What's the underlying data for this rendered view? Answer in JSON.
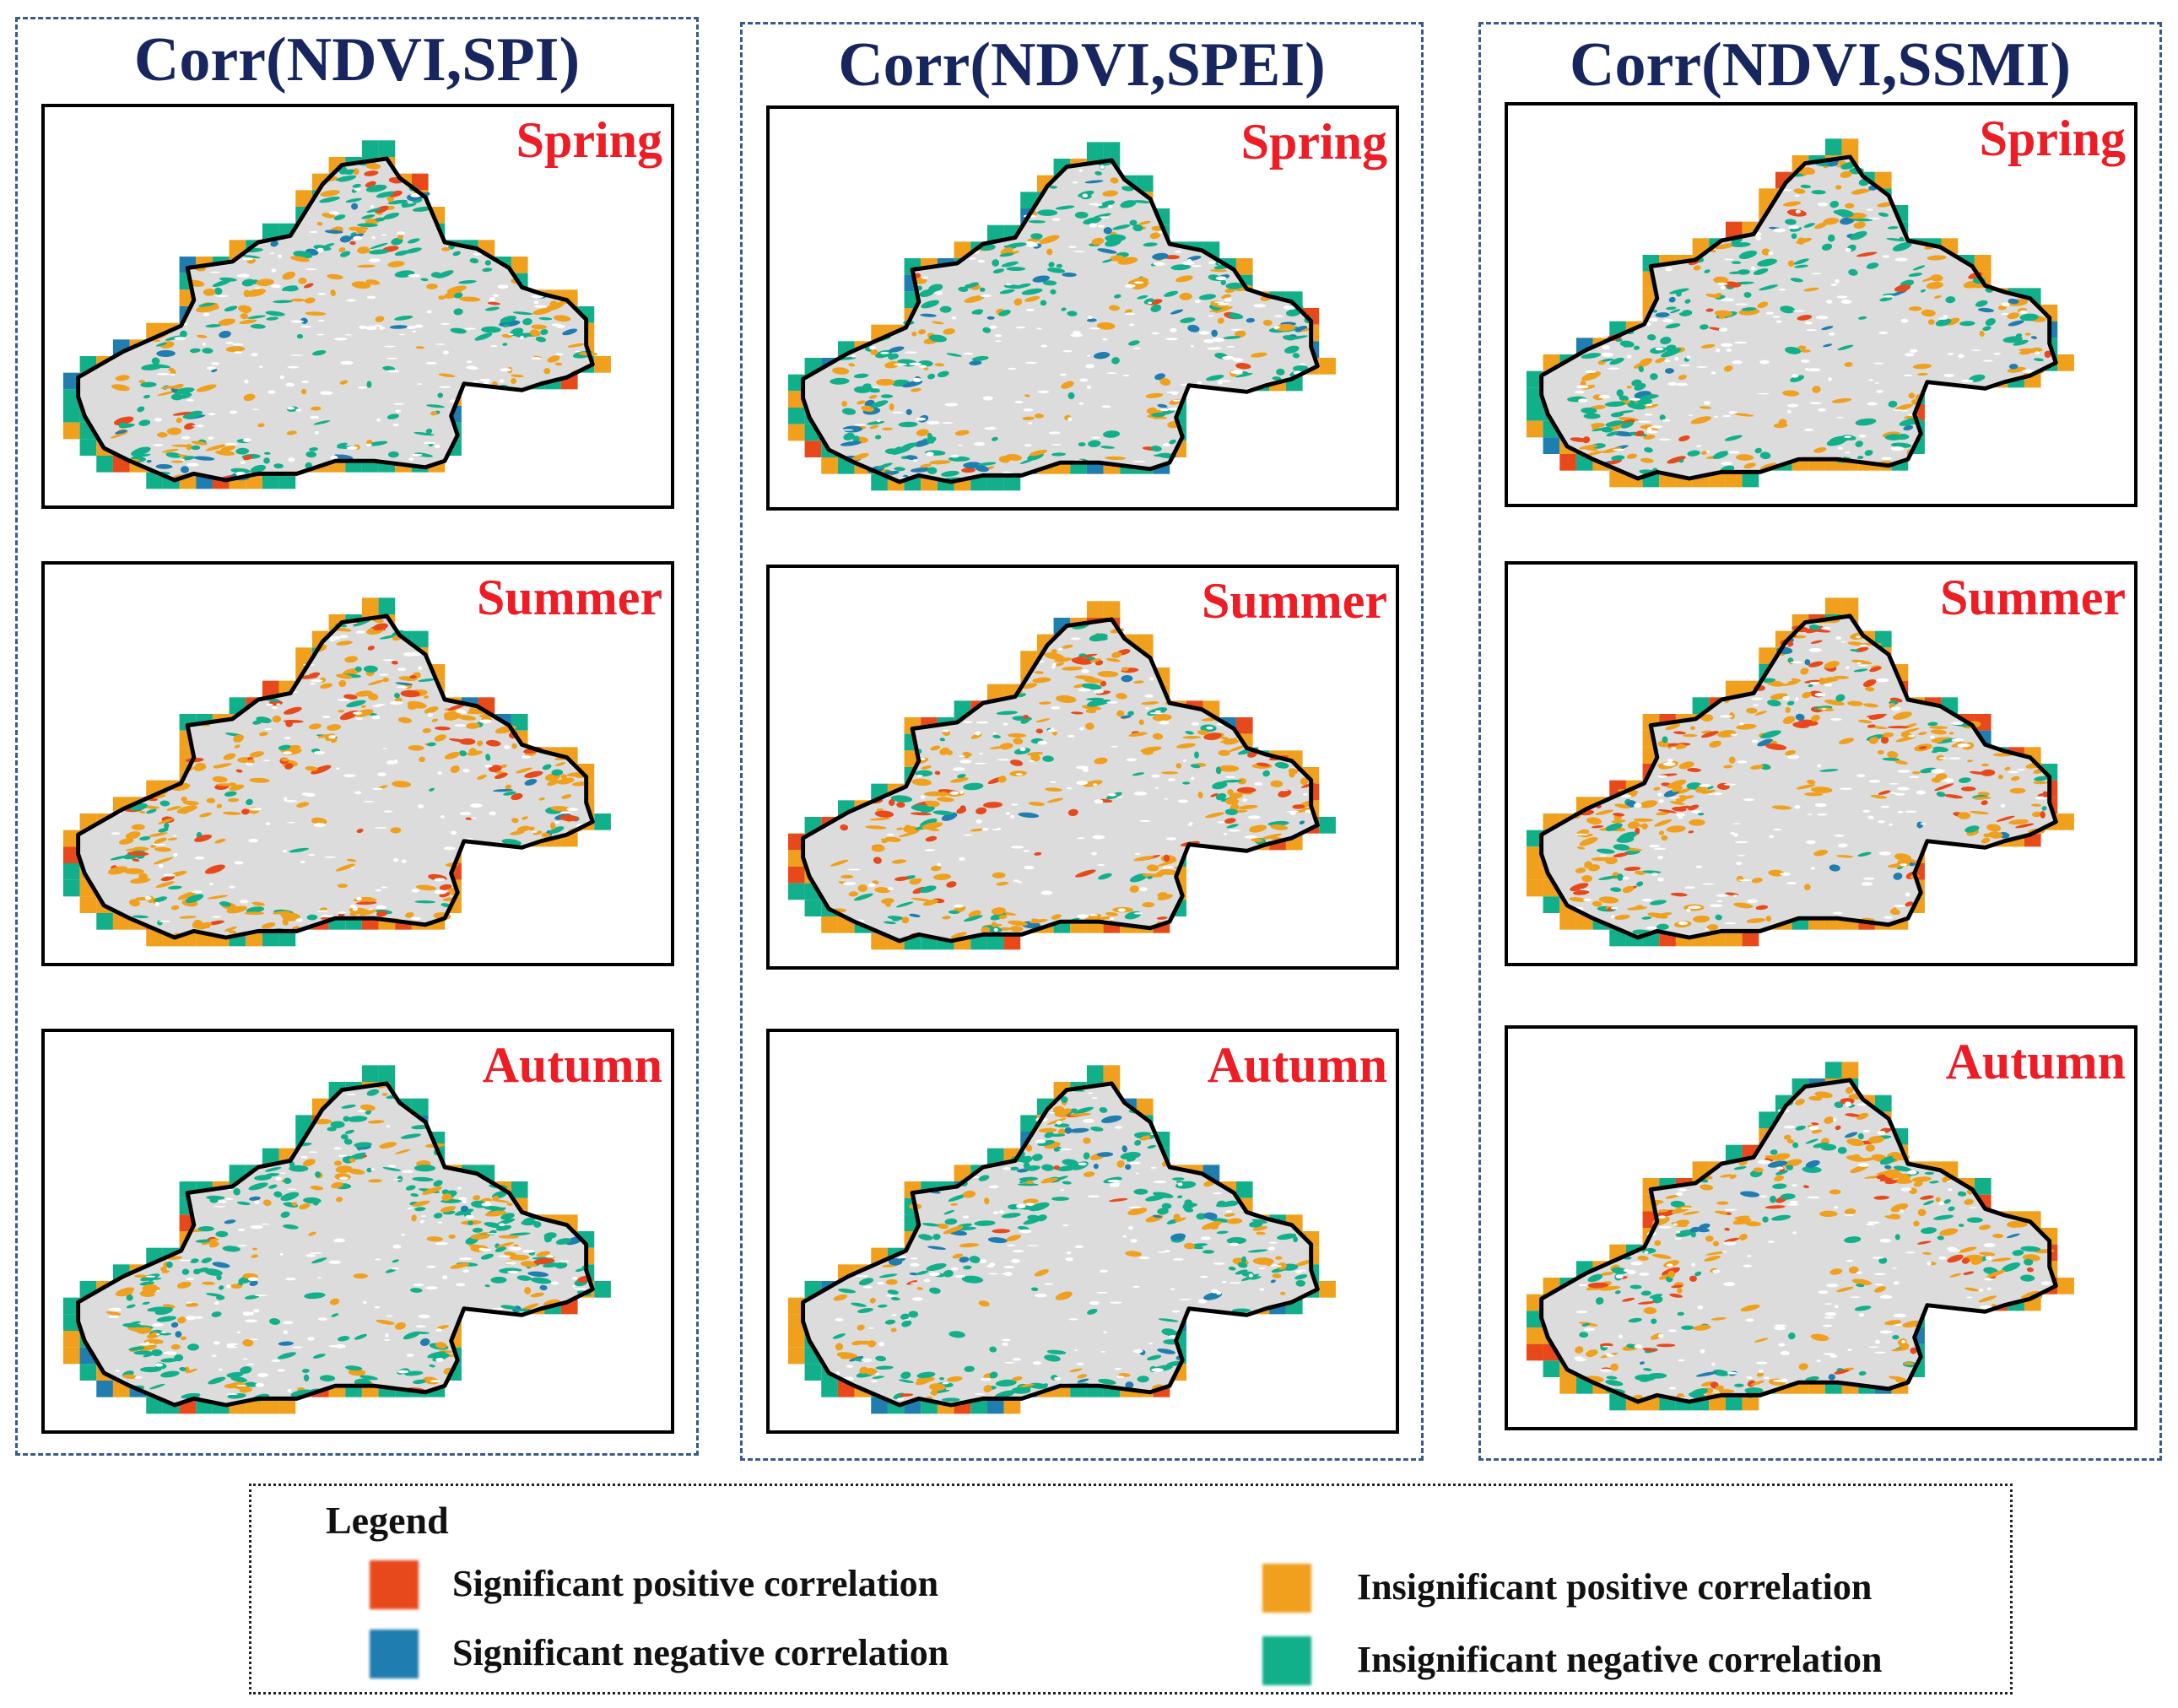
{
  "columns": [
    {
      "title": "Corr(NDVI,SPI)",
      "panels": [
        {
          "season": "Spring",
          "mix": [
            0.04,
            0.1,
            0.4,
            0.46
          ]
        },
        {
          "season": "Summer",
          "mix": [
            0.16,
            0.02,
            0.58,
            0.24
          ]
        },
        {
          "season": "Autumn",
          "mix": [
            0.03,
            0.03,
            0.34,
            0.6
          ]
        }
      ]
    },
    {
      "title": "Corr(NDVI,SPEI)",
      "panels": [
        {
          "season": "Spring",
          "mix": [
            0.02,
            0.14,
            0.3,
            0.54
          ]
        },
        {
          "season": "Summer",
          "mix": [
            0.16,
            0.02,
            0.56,
            0.26
          ]
        },
        {
          "season": "Autumn",
          "mix": [
            0.02,
            0.1,
            0.32,
            0.56
          ]
        }
      ]
    },
    {
      "title": "Corr(NDVI,SSMI)",
      "panels": [
        {
          "season": "Spring",
          "mix": [
            0.06,
            0.06,
            0.46,
            0.42
          ]
        },
        {
          "season": "Summer",
          "mix": [
            0.2,
            0.02,
            0.58,
            0.2
          ]
        },
        {
          "season": "Autumn",
          "mix": [
            0.14,
            0.04,
            0.46,
            0.36
          ]
        }
      ]
    }
  ],
  "legend": {
    "title": "Legend",
    "items": [
      {
        "label": "Significant positive correlation",
        "color": "#e8491b"
      },
      {
        "label": "Insignificant positive correlation",
        "color": "#f0a01c"
      },
      {
        "label": "Significant negative correlation",
        "color": "#1f7db0"
      },
      {
        "label": "Insignificant negative correlation",
        "color": "#12b08a"
      }
    ]
  },
  "colors": {
    "background_region": "#dcdcdc",
    "boundary": "#000000"
  }
}
